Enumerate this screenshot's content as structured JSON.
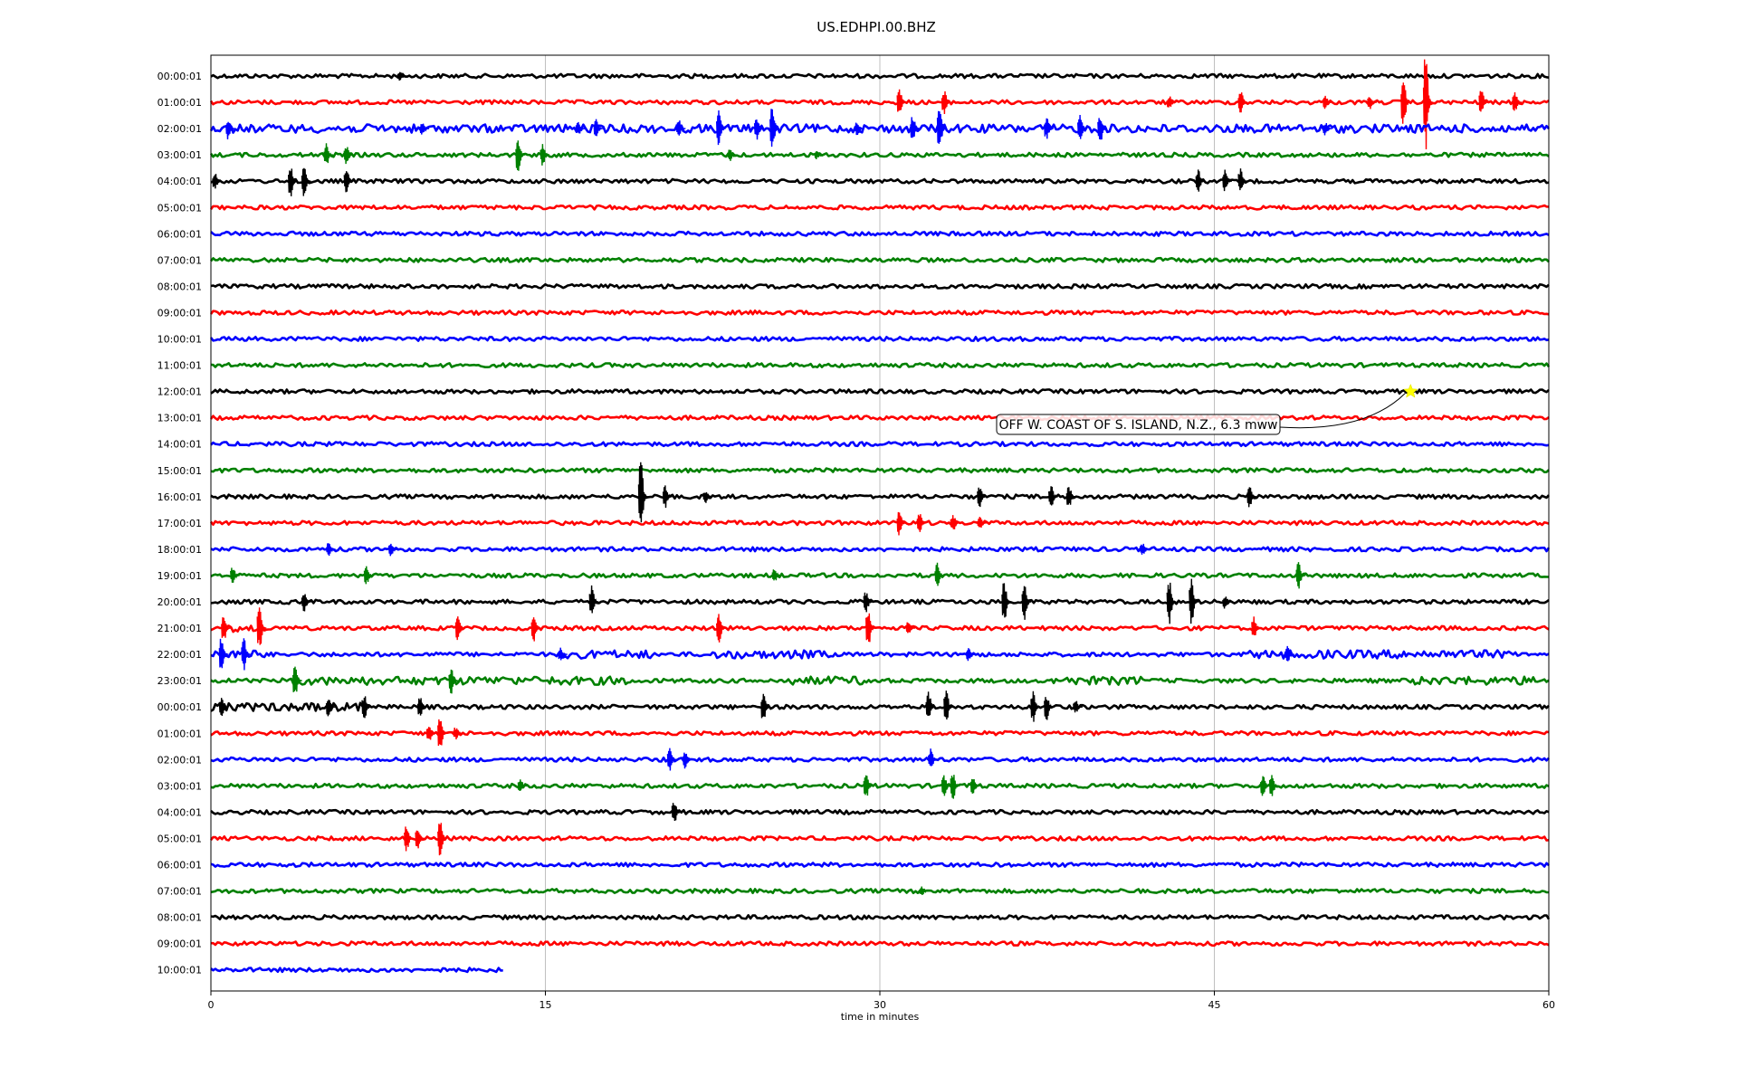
{
  "chart_data": {
    "type": "line",
    "title": "US.EDHPI.00.BHZ",
    "xlabel": "time in minutes",
    "ylabel": "",
    "xlim": [
      0,
      60
    ],
    "xticks": [
      "0",
      "15",
      "30",
      "45",
      "60"
    ],
    "grid": "vertical lines at 15, 30, 45",
    "row_colors": [
      "#000000",
      "#ff0000",
      "#0000ff",
      "#008000"
    ],
    "rows": [
      {
        "label": "00:00:01",
        "color": "#000000",
        "end_minute": 60,
        "events": [
          [
            8.5,
            0.2
          ]
        ]
      },
      {
        "label": "01:00:01",
        "color": "#ff0000",
        "end_minute": 60,
        "events": [
          [
            30.9,
            0.6
          ],
          [
            32.9,
            0.6
          ],
          [
            43.0,
            0.3
          ],
          [
            46.2,
            0.6
          ],
          [
            50.0,
            0.3
          ],
          [
            52.0,
            0.3
          ],
          [
            53.5,
            1.2
          ],
          [
            54.5,
            2.2
          ],
          [
            57.0,
            0.6
          ],
          [
            58.5,
            0.5
          ]
        ]
      },
      {
        "label": "02:00:01",
        "color": "#0000ff",
        "end_minute": 60,
        "events": [
          [
            0.8,
            0.5
          ],
          [
            9.5,
            0.3
          ],
          [
            16.5,
            0.3
          ],
          [
            17.3,
            0.4
          ],
          [
            21.0,
            0.4
          ],
          [
            22.8,
            0.8
          ],
          [
            24.5,
            0.5
          ],
          [
            25.2,
            1.0
          ],
          [
            29.0,
            0.3
          ],
          [
            31.5,
            0.6
          ],
          [
            32.7,
            0.9
          ],
          [
            37.5,
            0.5
          ],
          [
            39.0,
            0.6
          ],
          [
            39.9,
            0.7
          ],
          [
            50.0,
            0.3
          ]
        ]
      },
      {
        "label": "03:00:01",
        "color": "#008000",
        "end_minute": 60,
        "events": [
          [
            5.2,
            0.5
          ],
          [
            6.1,
            0.4
          ],
          [
            13.8,
            0.8
          ],
          [
            14.9,
            0.5
          ],
          [
            23.3,
            0.3
          ],
          [
            27.2,
            0.2
          ]
        ]
      },
      {
        "label": "04:00:01",
        "color": "#000000",
        "end_minute": 60,
        "events": [
          [
            0.2,
            0.4
          ],
          [
            3.6,
            0.7
          ],
          [
            4.2,
            0.7
          ],
          [
            6.1,
            0.6
          ],
          [
            44.3,
            0.5
          ],
          [
            45.5,
            0.5
          ],
          [
            46.2,
            0.6
          ]
        ]
      },
      {
        "label": "05:00:01",
        "color": "#ff0000",
        "end_minute": 60,
        "events": []
      },
      {
        "label": "06:00:01",
        "color": "#0000ff",
        "end_minute": 60,
        "events": []
      },
      {
        "label": "07:00:01",
        "color": "#008000",
        "end_minute": 60,
        "events": []
      },
      {
        "label": "08:00:01",
        "color": "#000000",
        "end_minute": 60,
        "events": []
      },
      {
        "label": "09:00:01",
        "color": "#ff0000",
        "end_minute": 60,
        "events": []
      },
      {
        "label": "10:00:01",
        "color": "#0000ff",
        "end_minute": 60,
        "events": []
      },
      {
        "label": "11:00:01",
        "color": "#008000",
        "end_minute": 60,
        "events": []
      },
      {
        "label": "12:00:01",
        "color": "#000000",
        "end_minute": 60,
        "events": []
      },
      {
        "label": "13:00:01",
        "color": "#ff0000",
        "end_minute": 60,
        "events": []
      },
      {
        "label": "14:00:01",
        "color": "#0000ff",
        "end_minute": 60,
        "events": []
      },
      {
        "label": "15:00:01",
        "color": "#008000",
        "end_minute": 60,
        "events": []
      },
      {
        "label": "16:00:01",
        "color": "#000000",
        "end_minute": 60,
        "events": [
          [
            19.3,
            1.6
          ],
          [
            20.4,
            0.5
          ],
          [
            22.2,
            0.3
          ],
          [
            34.5,
            0.5
          ],
          [
            37.7,
            0.5
          ],
          [
            38.5,
            0.5
          ],
          [
            46.6,
            0.5
          ]
        ]
      },
      {
        "label": "17:00:01",
        "color": "#ff0000",
        "end_minute": 60,
        "events": [
          [
            30.9,
            0.6
          ],
          [
            31.8,
            0.5
          ],
          [
            33.3,
            0.4
          ],
          [
            34.5,
            0.3
          ]
        ]
      },
      {
        "label": "18:00:01",
        "color": "#0000ff",
        "end_minute": 60,
        "events": [
          [
            5.3,
            0.3
          ],
          [
            8.1,
            0.3
          ],
          [
            41.8,
            0.3
          ]
        ]
      },
      {
        "label": "19:00:01",
        "color": "#008000",
        "end_minute": 60,
        "events": [
          [
            1.0,
            0.4
          ],
          [
            7.0,
            0.4
          ],
          [
            25.3,
            0.3
          ],
          [
            32.6,
            0.6
          ],
          [
            48.8,
            0.6
          ]
        ]
      },
      {
        "label": "20:00:01",
        "color": "#000000",
        "end_minute": 60,
        "events": [
          [
            4.2,
            0.5
          ],
          [
            17.1,
            0.7
          ],
          [
            29.4,
            0.5
          ],
          [
            35.6,
            1.0
          ],
          [
            36.5,
            1.0
          ],
          [
            43.0,
            1.0
          ],
          [
            44.0,
            1.0
          ],
          [
            45.5,
            0.3
          ]
        ]
      },
      {
        "label": "21:00:01",
        "color": "#ff0000",
        "end_minute": 60,
        "events": [
          [
            0.6,
            0.6
          ],
          [
            2.2,
            1.0
          ],
          [
            11.1,
            0.6
          ],
          [
            14.5,
            0.6
          ],
          [
            22.8,
            0.7
          ],
          [
            29.5,
            0.9
          ],
          [
            31.3,
            0.3
          ],
          [
            46.8,
            0.5
          ]
        ]
      },
      {
        "label": "22:00:01",
        "color": "#0000ff",
        "end_minute": 60,
        "events": [
          [
            0.5,
            0.8
          ],
          [
            1.5,
            0.7
          ],
          [
            15.7,
            0.3
          ],
          [
            34.0,
            0.3
          ],
          [
            48.3,
            0.4
          ]
        ]
      },
      {
        "label": "23:00:01",
        "color": "#008000",
        "end_minute": 60,
        "events": [
          [
            3.8,
            0.8
          ],
          [
            10.8,
            0.6
          ]
        ]
      },
      {
        "label": "00:00:01",
        "color": "#000000",
        "end_minute": 60,
        "events": [
          [
            0.5,
            0.4
          ],
          [
            5.3,
            0.5
          ],
          [
            6.9,
            0.6
          ],
          [
            9.4,
            0.5
          ],
          [
            24.8,
            0.7
          ],
          [
            32.2,
            0.7
          ],
          [
            33.0,
            0.7
          ],
          [
            36.9,
            0.7
          ],
          [
            37.5,
            0.6
          ],
          [
            38.8,
            0.3
          ]
        ]
      },
      {
        "label": "01:00:01",
        "color": "#ff0000",
        "end_minute": 60,
        "events": [
          [
            9.8,
            0.4
          ],
          [
            10.3,
            0.8
          ],
          [
            11.0,
            0.3
          ]
        ]
      },
      {
        "label": "02:00:01",
        "color": "#0000ff",
        "end_minute": 60,
        "events": [
          [
            20.6,
            0.5
          ],
          [
            21.3,
            0.4
          ],
          [
            32.3,
            0.5
          ]
        ]
      },
      {
        "label": "03:00:01",
        "color": "#008000",
        "end_minute": 60,
        "events": [
          [
            13.9,
            0.3
          ],
          [
            29.4,
            0.6
          ],
          [
            32.9,
            0.5
          ],
          [
            33.3,
            0.6
          ],
          [
            34.2,
            0.4
          ],
          [
            47.2,
            0.5
          ],
          [
            47.6,
            0.5
          ]
        ]
      },
      {
        "label": "04:00:01",
        "color": "#000000",
        "end_minute": 60,
        "events": [
          [
            20.8,
            0.5
          ]
        ]
      },
      {
        "label": "05:00:01",
        "color": "#ff0000",
        "end_minute": 60,
        "events": [
          [
            8.8,
            0.6
          ],
          [
            9.3,
            0.5
          ],
          [
            10.3,
            0.8
          ]
        ]
      },
      {
        "label": "06:00:01",
        "color": "#0000ff",
        "end_minute": 60,
        "events": []
      },
      {
        "label": "07:00:01",
        "color": "#008000",
        "end_minute": 60,
        "events": [
          [
            31.9,
            0.2
          ]
        ]
      },
      {
        "label": "08:00:01",
        "color": "#000000",
        "end_minute": 60,
        "events": []
      },
      {
        "label": "09:00:01",
        "color": "#ff0000",
        "end_minute": 60,
        "events": []
      },
      {
        "label": "10:00:01",
        "color": "#0000ff",
        "end_minute": 13.1,
        "events": []
      }
    ],
    "noisy_segments": [
      {
        "row": 2,
        "from": 0,
        "to": 60
      },
      {
        "row": 21,
        "from": 0,
        "to": 2.5
      },
      {
        "row": 22,
        "from": 0,
        "to": 2.5
      },
      {
        "row": 22,
        "from": 15.5,
        "to": 19.8
      },
      {
        "row": 22,
        "from": 22.5,
        "to": 27.8
      },
      {
        "row": 22,
        "from": 46.6,
        "to": 58.5
      },
      {
        "row": 23,
        "from": 3.0,
        "to": 18.8
      },
      {
        "row": 23,
        "from": 25.8,
        "to": 29.8
      },
      {
        "row": 23,
        "from": 37.8,
        "to": 41.8
      },
      {
        "row": 23,
        "from": 53.8,
        "to": 60
      },
      {
        "row": 24,
        "from": 0,
        "to": 7.0
      }
    ],
    "annotation": {
      "text": "OFF W. COAST OF S. ISLAND, N.Z., 6.3 mww",
      "row": 12,
      "minute": 53.8,
      "marker": "star",
      "marker_color": "#ffff00"
    }
  }
}
